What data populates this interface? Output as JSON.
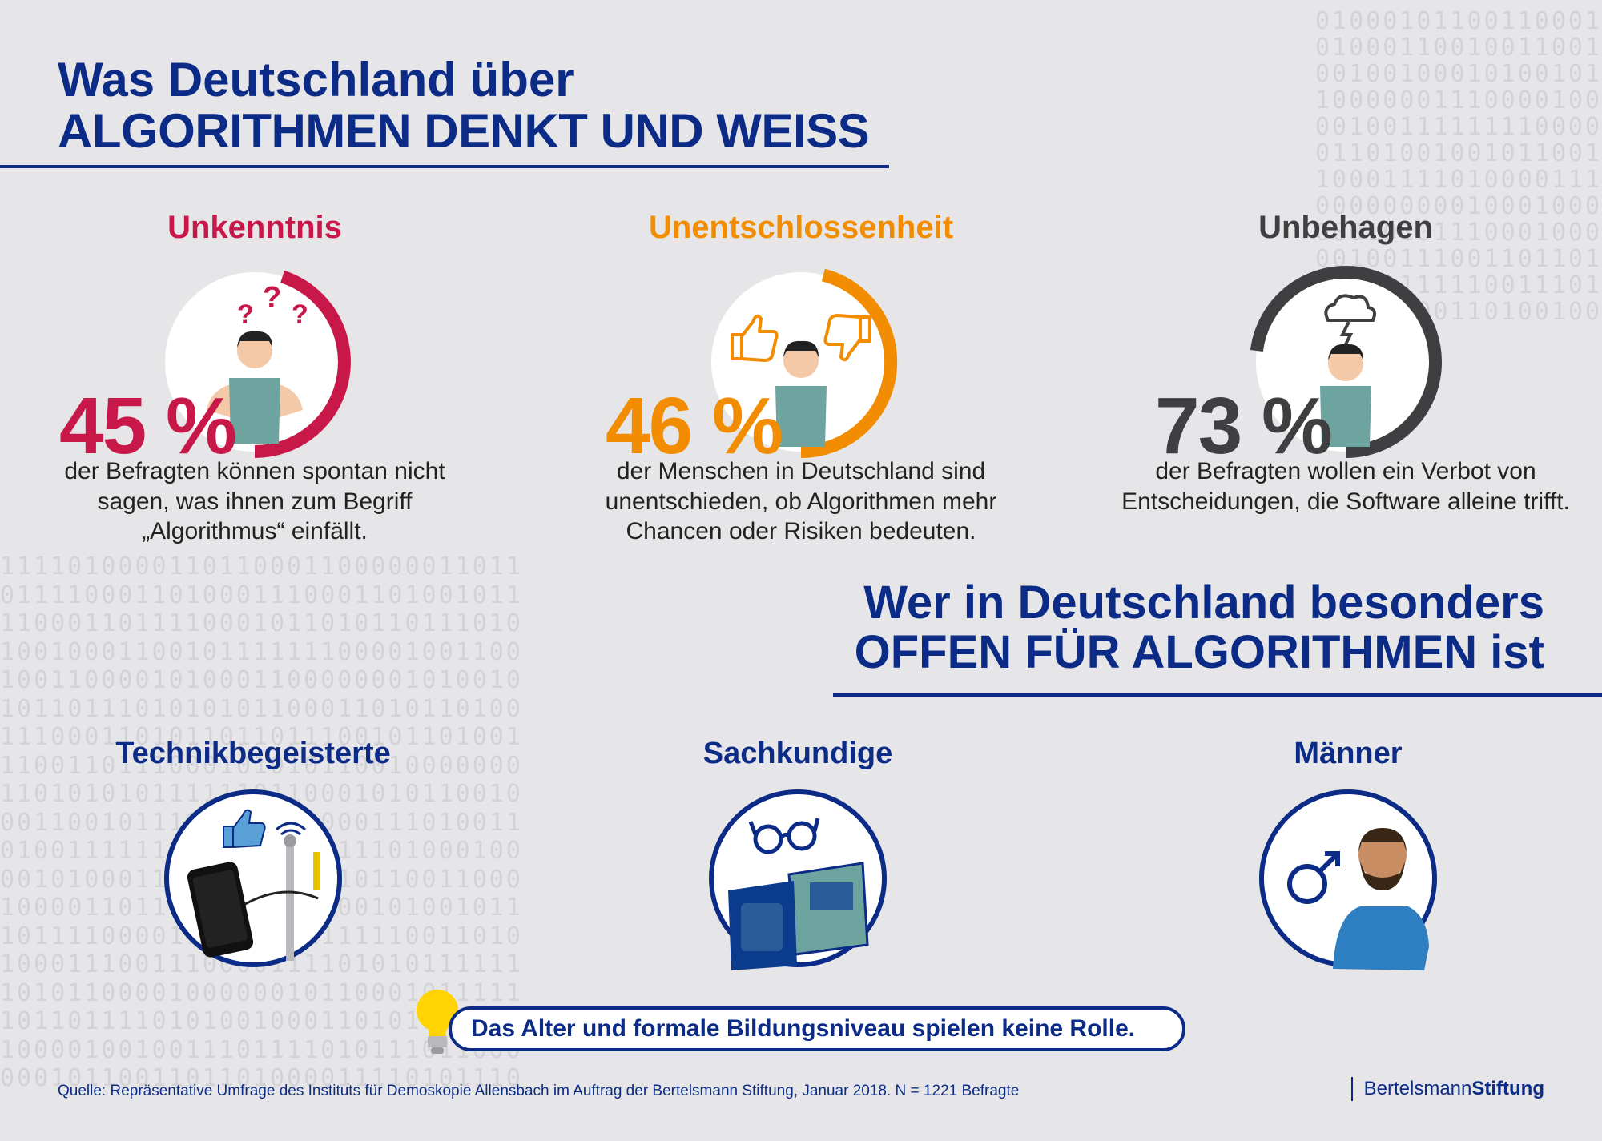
{
  "header": {
    "title_line1": "Was Deutschland über",
    "title_line2": "ALGORITHMEN DENKT UND WEISS"
  },
  "stats": [
    {
      "label": "Unkenntnis",
      "percent": "45 %",
      "value": 45,
      "description": "der Befragten können spontan nicht sagen, was ihnen zum Begriff „Algorithmus“ einfällt.",
      "color": "#c8184a",
      "icon": "question-marks-person-icon"
    },
    {
      "label": "Unentschlossenheit",
      "percent": "46 %",
      "value": 46,
      "description": "der Menschen in Deutschland sind unentschieden, ob Algorithmen mehr Chancen oder Risiken bedeuten.",
      "color": "#f28c00",
      "icon": "thumbs-up-down-person-icon"
    },
    {
      "label": "Unbehagen",
      "percent": "73 %",
      "value": 73,
      "description": "der Befragten wollen ein Verbot von Entscheidungen, die Software alleine trifft.",
      "color": "#3f3f41",
      "icon": "storm-cloud-person-icon"
    }
  ],
  "subheader": {
    "line1": "Wer in Deutschland besonders",
    "line2": "OFFEN FÜR ALGORITHMEN ist"
  },
  "groups": [
    {
      "label": "Technikbegeisterte",
      "icon": "smartphone-gadgets-icon"
    },
    {
      "label": "Sachkundige",
      "icon": "glasses-books-icon"
    },
    {
      "label": "Männer",
      "icon": "male-symbol-man-icon"
    }
  ],
  "note": {
    "text": "Das Alter und formale Bildungsniveau spielen keine Rolle.",
    "icon": "light-bulb-icon"
  },
  "footer": {
    "source": "Quelle: Repräsentative Umfrage des Instituts für Demoskopie Allensbach im Auftrag der Bertelsmann Stiftung, Januar 2018. N = 1221 Befragte",
    "brand_part1": "Bertelsmann",
    "brand_part2": "Stiftung"
  },
  "colors": {
    "background": "#e6e6e8",
    "navy": "#0b2b86",
    "crimson": "#c8184a",
    "orange": "#f28c00",
    "grey": "#3f3f41",
    "teal": "#6ea4a0"
  }
}
